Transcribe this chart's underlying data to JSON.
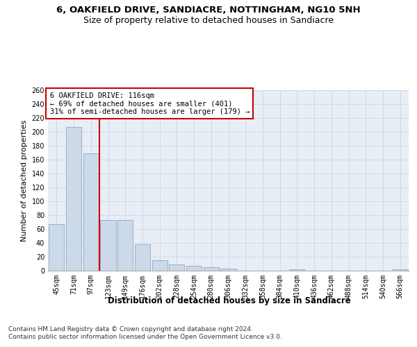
{
  "title": "6, OAKFIELD DRIVE, SANDIACRE, NOTTINGHAM, NG10 5NH",
  "subtitle": "Size of property relative to detached houses in Sandiacre",
  "xlabel": "Distribution of detached houses by size in Sandiacre",
  "ylabel": "Number of detached properties",
  "categories": [
    "45sqm",
    "71sqm",
    "97sqm",
    "123sqm",
    "149sqm",
    "176sqm",
    "202sqm",
    "228sqm",
    "254sqm",
    "280sqm",
    "306sqm",
    "332sqm",
    "358sqm",
    "384sqm",
    "410sqm",
    "436sqm",
    "462sqm",
    "488sqm",
    "514sqm",
    "540sqm",
    "566sqm"
  ],
  "values": [
    67,
    207,
    169,
    73,
    73,
    38,
    15,
    9,
    7,
    5,
    3,
    0,
    0,
    0,
    2,
    0,
    0,
    0,
    0,
    0,
    2
  ],
  "bar_color": "#ccd9e8",
  "bar_edge_color": "#7a9ec0",
  "grid_color": "#d0d8e8",
  "background_color": "#e8eef5",
  "vline_x": 2.5,
  "vline_color": "#cc0000",
  "annotation_text": "6 OAKFIELD DRIVE: 116sqm\n← 69% of detached houses are smaller (401)\n31% of semi-detached houses are larger (179) →",
  "annotation_box_color": "#ffffff",
  "annotation_box_edge": "#cc0000",
  "ylim": [
    0,
    260
  ],
  "yticks": [
    0,
    20,
    40,
    60,
    80,
    100,
    120,
    140,
    160,
    180,
    200,
    220,
    240,
    260
  ],
  "footer_line1": "Contains HM Land Registry data © Crown copyright and database right 2024.",
  "footer_line2": "Contains public sector information licensed under the Open Government Licence v3.0.",
  "title_fontsize": 9.5,
  "subtitle_fontsize": 9,
  "xlabel_fontsize": 8.5,
  "ylabel_fontsize": 8,
  "tick_fontsize": 7,
  "annotation_fontsize": 7.5,
  "footer_fontsize": 6.5
}
